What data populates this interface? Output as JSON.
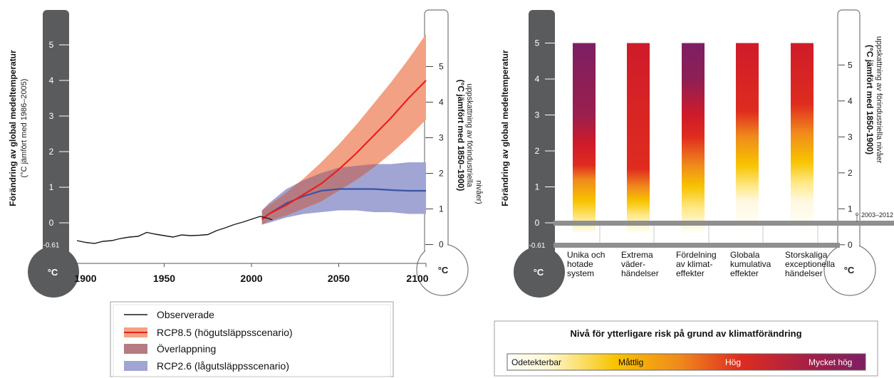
{
  "chart_data": [
    {
      "type": "line",
      "ylabel_left": "Förändring av global medeltemperatur",
      "ylabel_left_sub": "(°C jämfört med 1986–2005)",
      "ylabel_right": "(°C jämfört med 1850–1900)",
      "ylabel_right_sub": "uppskattning av förindustriella",
      "ylabel_right_sub2": "nivåer)",
      "thermo_unit": "°C",
      "left_ticks": [
        "5",
        "4",
        "3",
        "2",
        "1",
        "0",
        "-0.61"
      ],
      "right_ticks": [
        "5",
        "4",
        "3",
        "2",
        "1",
        "0"
      ],
      "xticks": [
        "1900",
        "1950",
        "2000",
        "2050",
        "2100"
      ],
      "xlim": [
        1900,
        2100
      ],
      "ylim": [
        -0.61,
        5.6
      ],
      "series": [
        {
          "name": "Observerade",
          "color": "#1a1a1a",
          "x": [
            1900,
            1905,
            1910,
            1915,
            1920,
            1925,
            1930,
            1935,
            1940,
            1945,
            1950,
            1955,
            1960,
            1965,
            1970,
            1975,
            1980,
            1985,
            1990,
            1995,
            2000,
            2005,
            2010,
            2012
          ],
          "y": [
            -0.5,
            -0.55,
            -0.58,
            -0.52,
            -0.5,
            -0.44,
            -0.4,
            -0.38,
            -0.27,
            -0.32,
            -0.36,
            -0.4,
            -0.34,
            -0.36,
            -0.35,
            -0.33,
            -0.22,
            -0.14,
            -0.05,
            0.02,
            0.1,
            0.18,
            0.12,
            0.08
          ]
        },
        {
          "name": "RCP8.5 (högutsläppsscenario)",
          "color": "#e8211c",
          "band_color": "#f3a184",
          "x": [
            2006,
            2010,
            2020,
            2030,
            2040,
            2050,
            2060,
            2070,
            2080,
            2090,
            2100
          ],
          "y": [
            0.1,
            0.25,
            0.5,
            0.8,
            1.1,
            1.5,
            1.95,
            2.45,
            2.95,
            3.5,
            4.0
          ],
          "lower": [
            -0.05,
            0.05,
            0.2,
            0.4,
            0.6,
            0.9,
            1.2,
            1.55,
            1.95,
            2.4,
            2.9
          ],
          "upper": [
            0.35,
            0.5,
            0.85,
            1.25,
            1.7,
            2.2,
            2.75,
            3.35,
            3.95,
            4.6,
            5.3
          ]
        },
        {
          "name": "RCP2.6 (lågutsläppsscenario)",
          "color": "#3a54a5",
          "band_color": "#a0a5d3",
          "x": [
            2006,
            2010,
            2020,
            2030,
            2040,
            2050,
            2060,
            2070,
            2080,
            2090,
            2100
          ],
          "y": [
            0.1,
            0.25,
            0.55,
            0.75,
            0.9,
            0.95,
            0.95,
            0.95,
            0.92,
            0.9,
            0.9
          ],
          "lower": [
            -0.05,
            0.0,
            0.15,
            0.25,
            0.3,
            0.35,
            0.35,
            0.3,
            0.3,
            0.25,
            0.25
          ],
          "upper": [
            0.35,
            0.55,
            0.95,
            1.2,
            1.4,
            1.55,
            1.6,
            1.65,
            1.65,
            1.7,
            1.7
          ]
        }
      ],
      "legend": {
        "placement": "bottom",
        "items": [
          {
            "label": "Observerade",
            "kind": "line",
            "color": "#1a1a1a"
          },
          {
            "label": "RCP8.5 (högutsläppsscenario)",
            "kind": "band-line",
            "color": "#e8211c",
            "band_color": "#f3a184"
          },
          {
            "label": "Överlappning",
            "kind": "box",
            "color": "#b67b82"
          },
          {
            "label": "RCP2.6 (lågutsläppsscenario)",
            "kind": "box",
            "color": "#a0a5d3"
          }
        ]
      }
    },
    {
      "type": "bar",
      "ylabel_left": "Förändring av global medeltemperatur",
      "ylabel_right": "(°C jämfört med 1850-1900)",
      "ylabel_right_sub": "uppskattning av förindustriella nivåer",
      "thermo_unit": "°C",
      "left_ticks": [
        "5",
        "4",
        "3",
        "2",
        "1",
        "0",
        "-0.61"
      ],
      "right_ticks": [
        "5",
        "4",
        "3",
        "2",
        "1",
        "0"
      ],
      "annotation": "2003–2012",
      "ylim": [
        -0.61,
        5.0
      ],
      "categories": [
        [
          "Unika och",
          "hotade",
          "system"
        ],
        [
          "Extrema",
          "väder-",
          "händelser"
        ],
        [
          "Fördelning",
          "av klimat-",
          "effekter"
        ],
        [
          "Globala",
          "kumulativa",
          "effekter"
        ],
        [
          "Storskaliga",
          "exceptionella",
          "händelser"
        ]
      ],
      "risk_gradients": [
        [
          [
            -0.3,
            "#ffffff"
          ],
          [
            0.1,
            "#ffe98a"
          ],
          [
            0.6,
            "#f7c400"
          ],
          [
            1.2,
            "#f08a1c"
          ],
          [
            1.6,
            "#df2c1f"
          ],
          [
            2.2,
            "#cf1b2a"
          ],
          [
            3.0,
            "#9a1f4d"
          ],
          [
            5.0,
            "#7d1f63"
          ]
        ],
        [
          [
            -0.3,
            "#ffffff"
          ],
          [
            0.2,
            "#ffe98a"
          ],
          [
            0.6,
            "#f7c400"
          ],
          [
            1.0,
            "#f08a1c"
          ],
          [
            1.5,
            "#df2c1f"
          ],
          [
            5.0,
            "#cf1b2a"
          ]
        ],
        [
          [
            -0.3,
            "#ffffff"
          ],
          [
            0.4,
            "#ffe98a"
          ],
          [
            1.0,
            "#f7c400"
          ],
          [
            1.6,
            "#f08a1c"
          ],
          [
            2.4,
            "#df2c1f"
          ],
          [
            3.0,
            "#cf1b2a"
          ],
          [
            4.0,
            "#8e1f55"
          ],
          [
            5.0,
            "#7d1f63"
          ]
        ],
        [
          [
            -0.3,
            "#ffffff"
          ],
          [
            0.6,
            "#fff8e0"
          ],
          [
            1.0,
            "#ffe98a"
          ],
          [
            1.6,
            "#f7c400"
          ],
          [
            2.4,
            "#f08a1c"
          ],
          [
            3.1,
            "#df2c1f"
          ],
          [
            5.0,
            "#cf1b2a"
          ]
        ],
        [
          [
            -0.3,
            "#ffffff"
          ],
          [
            0.6,
            "#fff8e0"
          ],
          [
            1.1,
            "#ffe98a"
          ],
          [
            1.7,
            "#f7c400"
          ],
          [
            2.5,
            "#f08a1c"
          ],
          [
            3.3,
            "#df2c1f"
          ],
          [
            5.0,
            "#cf1b2a"
          ]
        ]
      ]
    }
  ],
  "risk_scale": {
    "title": "Nivå för ytterligare risk på grund av klimatförändring",
    "levels": [
      "Odetekterbar",
      "Måttlig",
      "Hög",
      "Mycket hög"
    ],
    "colors": [
      "#ffffff",
      "#f7c400",
      "#df2c1f",
      "#7d1f63"
    ]
  }
}
